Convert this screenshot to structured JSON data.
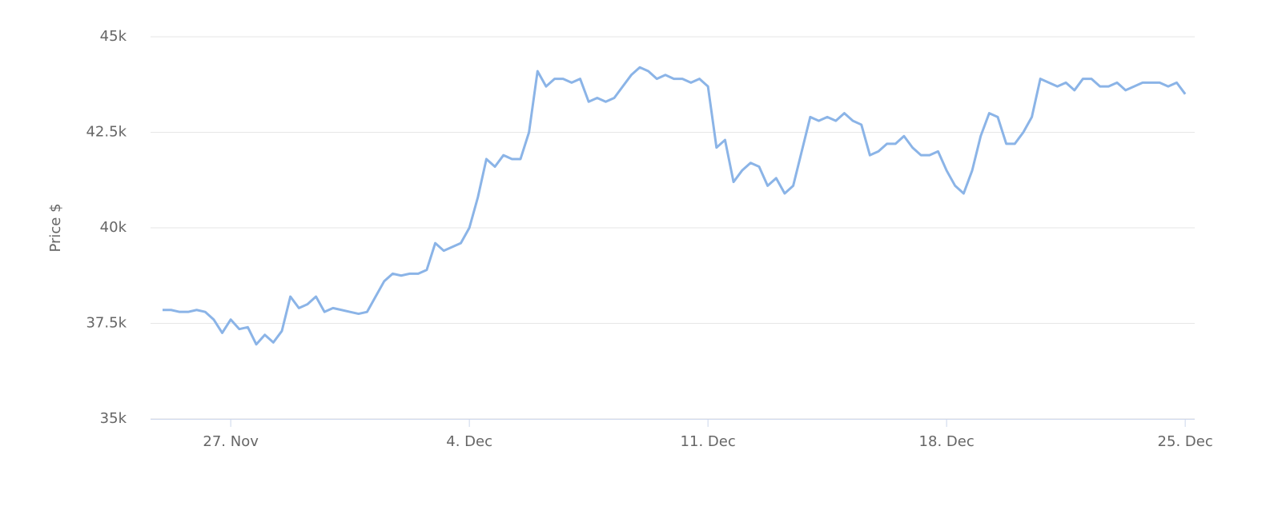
{
  "chart_data": {
    "type": "line",
    "y_axis_title": "Price $",
    "categories": [
      null,
      null,
      null,
      null,
      null,
      null,
      null,
      null,
      "27. Nov",
      null,
      null,
      null,
      null,
      null,
      null,
      null,
      null,
      null,
      null,
      null,
      null,
      null,
      null,
      null,
      null,
      null,
      null,
      null,
      null,
      null,
      null,
      null,
      null,
      null,
      null,
      null,
      "4. Dec",
      null,
      null,
      null,
      null,
      null,
      null,
      null,
      null,
      null,
      null,
      null,
      null,
      null,
      null,
      null,
      null,
      null,
      null,
      null,
      null,
      null,
      null,
      null,
      null,
      null,
      null,
      null,
      "11. Dec",
      null,
      null,
      null,
      null,
      null,
      null,
      null,
      null,
      null,
      null,
      null,
      null,
      null,
      null,
      null,
      null,
      null,
      null,
      null,
      null,
      null,
      null,
      null,
      null,
      null,
      null,
      null,
      "18. Dec",
      null,
      null,
      null,
      null,
      null,
      null,
      null,
      null,
      null,
      null,
      null,
      null,
      null,
      null,
      null,
      null,
      null,
      null,
      null,
      null,
      null,
      null,
      null,
      null,
      null,
      null,
      null,
      "25. Dec"
    ],
    "series": [
      {
        "name": "Price",
        "color": "#8bb4e7",
        "values": [
          37850,
          37850,
          37800,
          37800,
          37850,
          37800,
          37600,
          37250,
          37600,
          37350,
          37400,
          36950,
          37200,
          37000,
          37300,
          38200,
          37900,
          38000,
          38200,
          37800,
          37900,
          37850,
          37800,
          37750,
          37800,
          38200,
          38600,
          38800,
          38750,
          38800,
          38800,
          38900,
          39600,
          39400,
          39500,
          39600,
          40000,
          40800,
          41800,
          41600,
          41900,
          41800,
          41800,
          42500,
          44100,
          43700,
          43900,
          43900,
          43800,
          43900,
          43300,
          43400,
          43300,
          43400,
          43700,
          44000,
          44200,
          44100,
          43900,
          44000,
          43900,
          43900,
          43800,
          43900,
          43700,
          42100,
          42300,
          41200,
          41500,
          41700,
          41600,
          41100,
          41300,
          40900,
          41100,
          42000,
          42900,
          42800,
          42900,
          42800,
          43000,
          42800,
          42700,
          41900,
          42000,
          42200,
          42200,
          42400,
          42100,
          41900,
          41900,
          42000,
          41500,
          41100,
          40900,
          41500,
          42400,
          43000,
          42900,
          42200,
          42200,
          42500,
          42900,
          43900,
          43800,
          43700,
          43800,
          43600,
          43900,
          43900,
          43700,
          43700,
          43800,
          43600,
          43700,
          43800,
          43800,
          43800,
          43700,
          43800,
          43500
        ]
      }
    ],
    "ylim": [
      35000,
      45000
    ],
    "yticks": [
      {
        "value": 35000,
        "label": "35k"
      },
      {
        "value": 37500,
        "label": "37.5k"
      },
      {
        "value": 40000,
        "label": "40k"
      },
      {
        "value": 42500,
        "label": "42.5k"
      },
      {
        "value": 45000,
        "label": "45k"
      }
    ],
    "grid": true
  }
}
